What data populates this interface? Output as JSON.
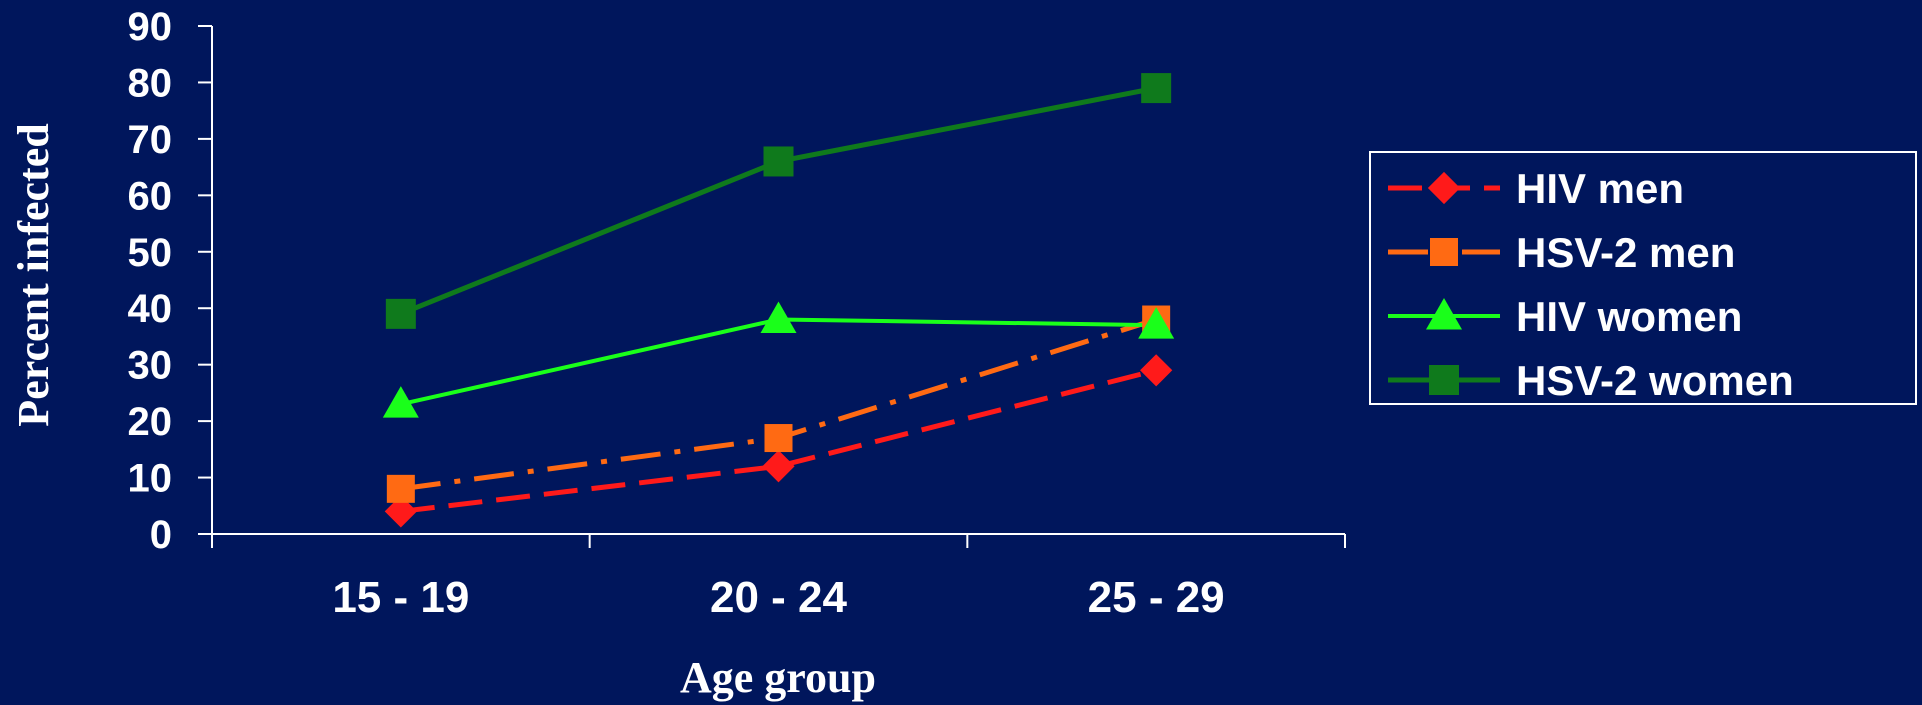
{
  "chart_data": {
    "type": "line",
    "categories": [
      "15 - 19",
      "20 - 24",
      "25 - 29"
    ],
    "xlabel": "Age group",
    "ylabel": "Percent infected",
    "ylim": [
      0,
      90
    ],
    "yticks": [
      0,
      10,
      20,
      30,
      40,
      50,
      60,
      70,
      80,
      90
    ],
    "grid": false,
    "legend_position": "right",
    "series": [
      {
        "name": "HIV men",
        "values": [
          4,
          12,
          29
        ],
        "color": "#ff1a1a",
        "marker": "diamond",
        "line_style": "dashed"
      },
      {
        "name": "HSV-2 men",
        "values": [
          8,
          17,
          38
        ],
        "color": "#ff6a13",
        "marker": "square",
        "line_style": "dash-dot"
      },
      {
        "name": "HIV women",
        "values": [
          23,
          38,
          37
        ],
        "color": "#1aff1a",
        "marker": "triangle",
        "line_style": "solid"
      },
      {
        "name": "HSV-2 women",
        "values": [
          39,
          66,
          79
        ],
        "color": "#0f7a1c",
        "marker": "square",
        "line_style": "solid"
      }
    ]
  }
}
